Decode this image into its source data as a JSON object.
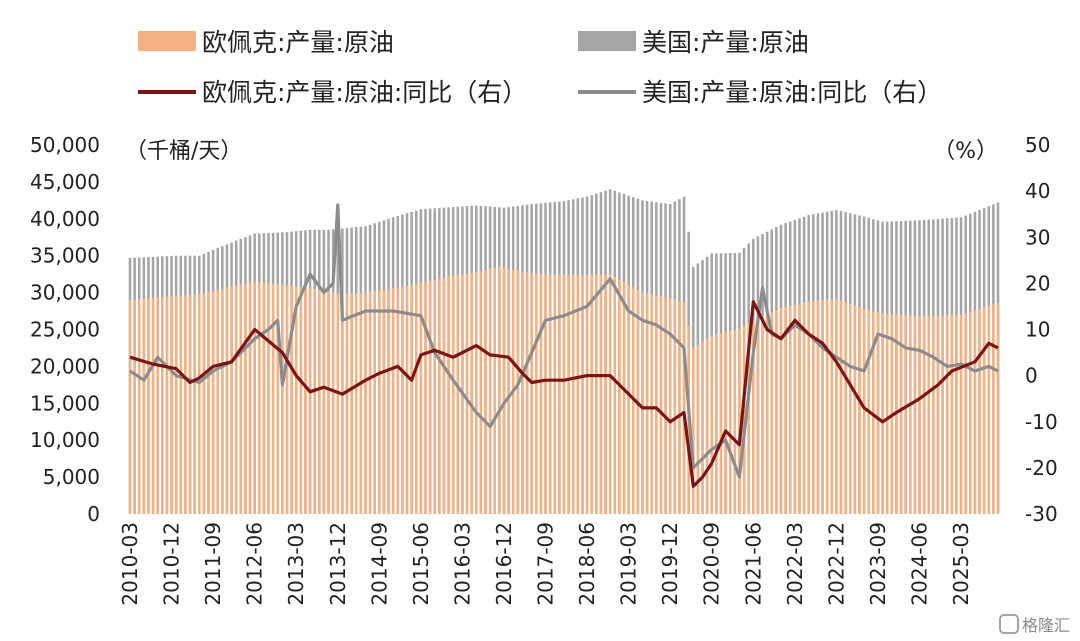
{
  "chart_data": {
    "type": "bar",
    "legend": [
      {
        "name": "欧佩克:产量:原油",
        "kind": "bar",
        "color": "#f4b183"
      },
      {
        "name": "美国:产量:原油",
        "kind": "bar",
        "color": "#a5a5a5"
      },
      {
        "name": "欧佩克:产量:原油:同比（右）",
        "kind": "line",
        "color": "#7b1414"
      },
      {
        "name": "美国:产量:原油:同比（右）",
        "kind": "line",
        "color": "#8c8c8c"
      }
    ],
    "y_left": {
      "unit": "（千桶/天）",
      "range": [
        0,
        50000
      ],
      "ticks": [
        "50,000",
        "45,000",
        "40,000",
        "35,000",
        "30,000",
        "25,000",
        "20,000",
        "15,000",
        "10,000",
        "5,000",
        "0"
      ]
    },
    "y_right": {
      "unit": "（%）",
      "range": [
        -30,
        50
      ],
      "ticks": [
        "50",
        "40",
        "30",
        "20",
        "10",
        "0",
        "-10",
        "-20",
        "-30"
      ]
    },
    "x_ticks": [
      "2010-03",
      "2010-12",
      "2011-09",
      "2012-06",
      "2013-03",
      "2013-12",
      "2014-09",
      "2015-06",
      "2016-03",
      "2016-12",
      "2017-09",
      "2018-06",
      "2019-03",
      "2019-12",
      "2020-09",
      "2021-06",
      "2022-03",
      "2022-12",
      "2023-09",
      "2024-06",
      "2025-03"
    ],
    "x_range": [
      "2010-03",
      "2025-11"
    ],
    "series": [
      {
        "name": "欧佩克:产量:原油",
        "axis": "left",
        "points": [
          [
            "2010-03",
            29000
          ],
          [
            "2011-01",
            29600
          ],
          [
            "2011-06",
            29800
          ],
          [
            "2012-01",
            30800
          ],
          [
            "2012-06",
            31500
          ],
          [
            "2013-01",
            31000
          ],
          [
            "2013-06",
            30600
          ],
          [
            "2014-01",
            29800
          ],
          [
            "2014-06",
            30000
          ],
          [
            "2015-01",
            30700
          ],
          [
            "2015-06",
            31300
          ],
          [
            "2016-01",
            32300
          ],
          [
            "2016-06",
            32800
          ],
          [
            "2016-11",
            33500
          ],
          [
            "2017-06",
            32600
          ],
          [
            "2018-01",
            32400
          ],
          [
            "2018-06",
            32400
          ],
          [
            "2018-11",
            32500
          ],
          [
            "2019-06",
            30000
          ],
          [
            "2019-12",
            29300
          ],
          [
            "2020-03",
            28600
          ],
          [
            "2020-05",
            22500
          ],
          [
            "2020-09",
            24200
          ],
          [
            "2021-03",
            25100
          ],
          [
            "2021-06",
            26300
          ],
          [
            "2021-12",
            27900
          ],
          [
            "2022-06",
            28800
          ],
          [
            "2022-12",
            29200
          ],
          [
            "2023-06",
            27800
          ],
          [
            "2023-10",
            27200
          ],
          [
            "2024-06",
            26800
          ],
          [
            "2025-03",
            27000
          ],
          [
            "2025-11",
            28600
          ]
        ]
      },
      {
        "name": "美国:产量:原油",
        "axis": "left",
        "points": [
          [
            "2010-03",
            34700
          ],
          [
            "2011-01",
            35000
          ],
          [
            "2011-06",
            35000
          ],
          [
            "2012-01",
            36800
          ],
          [
            "2012-06",
            38000
          ],
          [
            "2013-01",
            38200
          ],
          [
            "2013-06",
            38500
          ],
          [
            "2013-10",
            38500
          ],
          [
            "2014-06",
            39000
          ],
          [
            "2015-01",
            40400
          ],
          [
            "2015-06",
            41300
          ],
          [
            "2016-01",
            41600
          ],
          [
            "2016-06",
            41800
          ],
          [
            "2016-12",
            41500
          ],
          [
            "2017-06",
            42000
          ],
          [
            "2018-01",
            42400
          ],
          [
            "2018-06",
            43000
          ],
          [
            "2018-11",
            44000
          ],
          [
            "2019-06",
            42500
          ],
          [
            "2019-12",
            42000
          ],
          [
            "2020-03",
            43000
          ],
          [
            "2020-05",
            33500
          ],
          [
            "2020-09",
            35300
          ],
          [
            "2021-03",
            35400
          ],
          [
            "2021-06",
            37300
          ],
          [
            "2021-12",
            39200
          ],
          [
            "2022-06",
            40500
          ],
          [
            "2022-12",
            41200
          ],
          [
            "2023-06",
            40300
          ],
          [
            "2023-10",
            39600
          ],
          [
            "2024-06",
            39800
          ],
          [
            "2025-03",
            40200
          ],
          [
            "2025-11",
            42200
          ]
        ]
      },
      {
        "name": "欧佩克:产量:原油:同比（右）",
        "axis": "right",
        "points": [
          [
            "2010-03",
            4
          ],
          [
            "2010-08",
            2.5
          ],
          [
            "2011-01",
            1.5
          ],
          [
            "2011-04",
            -1.5
          ],
          [
            "2011-06",
            -0.5
          ],
          [
            "2011-09",
            2
          ],
          [
            "2012-01",
            3
          ],
          [
            "2012-06",
            10
          ],
          [
            "2012-12",
            5
          ],
          [
            "2013-03",
            0
          ],
          [
            "2013-06",
            -3.5
          ],
          [
            "2013-09",
            -2.5
          ],
          [
            "2014-01",
            -4
          ],
          [
            "2014-06",
            -1
          ],
          [
            "2014-09",
            0.5
          ],
          [
            "2015-01",
            2
          ],
          [
            "2015-04",
            -1
          ],
          [
            "2015-06",
            4.5
          ],
          [
            "2015-09",
            5.5
          ],
          [
            "2016-01",
            4
          ],
          [
            "2016-06",
            6.5
          ],
          [
            "2016-09",
            4.5
          ],
          [
            "2017-01",
            4
          ],
          [
            "2017-04",
            0.5
          ],
          [
            "2017-06",
            -1.5
          ],
          [
            "2017-09",
            -1
          ],
          [
            "2018-01",
            -1
          ],
          [
            "2018-06",
            0
          ],
          [
            "2018-11",
            0
          ],
          [
            "2019-01",
            -2
          ],
          [
            "2019-06",
            -7
          ],
          [
            "2019-09",
            -7
          ],
          [
            "2019-12",
            -10
          ],
          [
            "2020-03",
            -8
          ],
          [
            "2020-05",
            -24
          ],
          [
            "2020-07",
            -22
          ],
          [
            "2020-09",
            -19
          ],
          [
            "2020-12",
            -12
          ],
          [
            "2021-03",
            -15
          ],
          [
            "2021-06",
            16
          ],
          [
            "2021-09",
            10
          ],
          [
            "2021-12",
            8
          ],
          [
            "2022-03",
            12
          ],
          [
            "2022-06",
            9
          ],
          [
            "2022-09",
            7
          ],
          [
            "2022-12",
            3
          ],
          [
            "2023-03",
            -2
          ],
          [
            "2023-06",
            -7
          ],
          [
            "2023-10",
            -10
          ],
          [
            "2024-01",
            -8
          ],
          [
            "2024-06",
            -5
          ],
          [
            "2024-10",
            -2
          ],
          [
            "2025-01",
            1
          ],
          [
            "2025-06",
            3
          ],
          [
            "2025-09",
            7
          ],
          [
            "2025-11",
            6
          ]
        ]
      },
      {
        "name": "美国:产量:原油:同比（右）",
        "axis": "right",
        "points": [
          [
            "2010-03",
            1
          ],
          [
            "2010-06",
            -1
          ],
          [
            "2010-09",
            4
          ],
          [
            "2011-01",
            0
          ],
          [
            "2011-06",
            -1.5
          ],
          [
            "2011-09",
            1
          ],
          [
            "2012-01",
            3
          ],
          [
            "2012-06",
            8
          ],
          [
            "2012-09",
            10
          ],
          [
            "2012-11",
            12
          ],
          [
            "2012-12",
            -2
          ],
          [
            "2013-03",
            15
          ],
          [
            "2013-06",
            22
          ],
          [
            "2013-09",
            18
          ],
          [
            "2013-11",
            20
          ],
          [
            "2013-12",
            37
          ],
          [
            "2014-01",
            12
          ],
          [
            "2014-06",
            14
          ],
          [
            "2014-12",
            14
          ],
          [
            "2015-06",
            13
          ],
          [
            "2015-09",
            5
          ],
          [
            "2016-01",
            -1
          ],
          [
            "2016-06",
            -8
          ],
          [
            "2016-09",
            -11
          ],
          [
            "2016-12",
            -6
          ],
          [
            "2017-03",
            -2
          ],
          [
            "2017-06",
            5
          ],
          [
            "2017-09",
            12
          ],
          [
            "2018-01",
            13
          ],
          [
            "2018-06",
            15
          ],
          [
            "2018-11",
            21
          ],
          [
            "2019-03",
            14
          ],
          [
            "2019-06",
            12
          ],
          [
            "2019-09",
            11
          ],
          [
            "2019-12",
            9
          ],
          [
            "2020-03",
            6
          ],
          [
            "2020-05",
            -20
          ],
          [
            "2020-07",
            -18
          ],
          [
            "2020-09",
            -16
          ],
          [
            "2020-12",
            -14
          ],
          [
            "2021-03",
            -22
          ],
          [
            "2021-06",
            5
          ],
          [
            "2021-08",
            19
          ],
          [
            "2021-10",
            9
          ],
          [
            "2021-12",
            8
          ],
          [
            "2022-03",
            11
          ],
          [
            "2022-06",
            9
          ],
          [
            "2022-09",
            6
          ],
          [
            "2022-12",
            4
          ],
          [
            "2023-03",
            2
          ],
          [
            "2023-06",
            1
          ],
          [
            "2023-09",
            9
          ],
          [
            "2023-12",
            8
          ],
          [
            "2024-03",
            6
          ],
          [
            "2024-06",
            5.5
          ],
          [
            "2024-09",
            4
          ],
          [
            "2024-12",
            2
          ],
          [
            "2025-03",
            2.5
          ],
          [
            "2025-06",
            1
          ],
          [
            "2025-09",
            2
          ],
          [
            "2025-11",
            1
          ]
        ]
      }
    ],
    "watermark": "格隆汇"
  }
}
